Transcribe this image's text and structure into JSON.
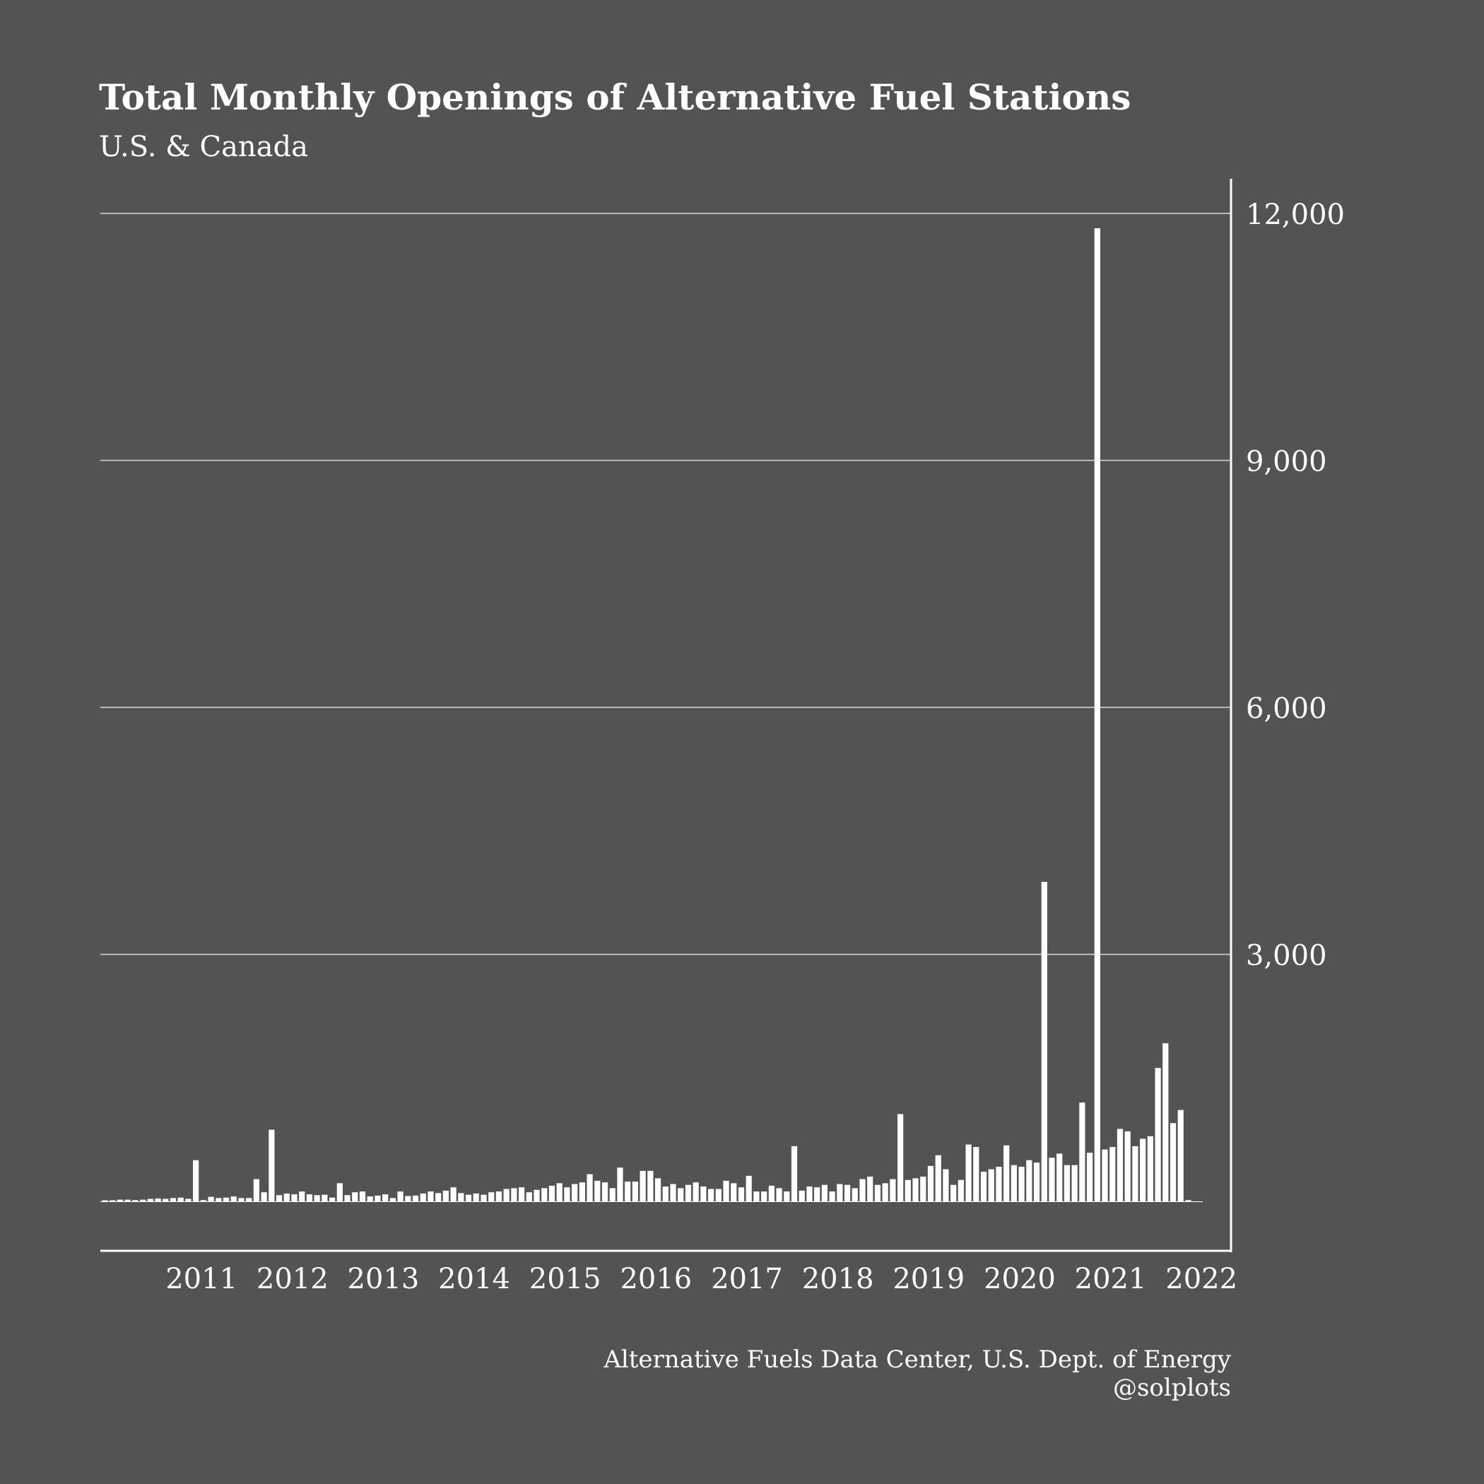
{
  "colors": {
    "background": "#535353",
    "foreground": "#ffffff",
    "gridline": "#d9d9d9"
  },
  "chart_data": {
    "type": "bar",
    "title": "Total Monthly Openings of Alternative Fuel Stations",
    "subtitle": "U.S. & Canada",
    "ylim": [
      0,
      12000
    ],
    "y_ticks": [
      3000,
      6000,
      9000,
      12000
    ],
    "y_tick_labels": [
      "3,000",
      "6,000",
      "9,000",
      "12,000"
    ],
    "y_axis_position": "right",
    "grid": "horizontal",
    "x_tick_labels": [
      "2011",
      "2012",
      "2013",
      "2014",
      "2015",
      "2016",
      "2017",
      "2018",
      "2019",
      "2020",
      "2021",
      "2022"
    ],
    "x_tick_month_index": [
      12,
      24,
      36,
      48,
      60,
      72,
      84,
      96,
      108,
      120,
      132,
      144
    ],
    "months_start": "2010-01",
    "values": [
      10,
      10,
      20,
      20,
      15,
      20,
      30,
      35,
      30,
      40,
      45,
      30,
      500,
      15,
      55,
      40,
      45,
      60,
      40,
      40,
      270,
      110,
      870,
      75,
      95,
      85,
      120,
      85,
      75,
      80,
      45,
      220,
      75,
      110,
      120,
      60,
      70,
      85,
      40,
      120,
      65,
      70,
      95,
      120,
      100,
      130,
      170,
      100,
      80,
      95,
      80,
      110,
      120,
      150,
      160,
      170,
      110,
      140,
      160,
      190,
      220,
      170,
      210,
      230,
      330,
      250,
      230,
      160,
      410,
      240,
      240,
      370,
      370,
      280,
      180,
      210,
      160,
      200,
      230,
      180,
      150,
      150,
      250,
      220,
      170,
      310,
      120,
      120,
      190,
      160,
      120,
      670,
      130,
      180,
      170,
      200,
      120,
      210,
      200,
      160,
      270,
      300,
      200,
      220,
      270,
      1060,
      260,
      280,
      300,
      430,
      560,
      390,
      200,
      260,
      690,
      660,
      360,
      390,
      420,
      680,
      440,
      420,
      500,
      470,
      3880,
      530,
      580,
      440,
      440,
      1200,
      590,
      11820,
      630,
      660,
      880,
      850,
      670,
      760,
      790,
      1620,
      1920,
      950,
      1110,
      15
    ]
  },
  "source_lines": [
    "Alternative Fuels Data Center, U.S. Dept. of Energy",
    "@solplots"
  ]
}
